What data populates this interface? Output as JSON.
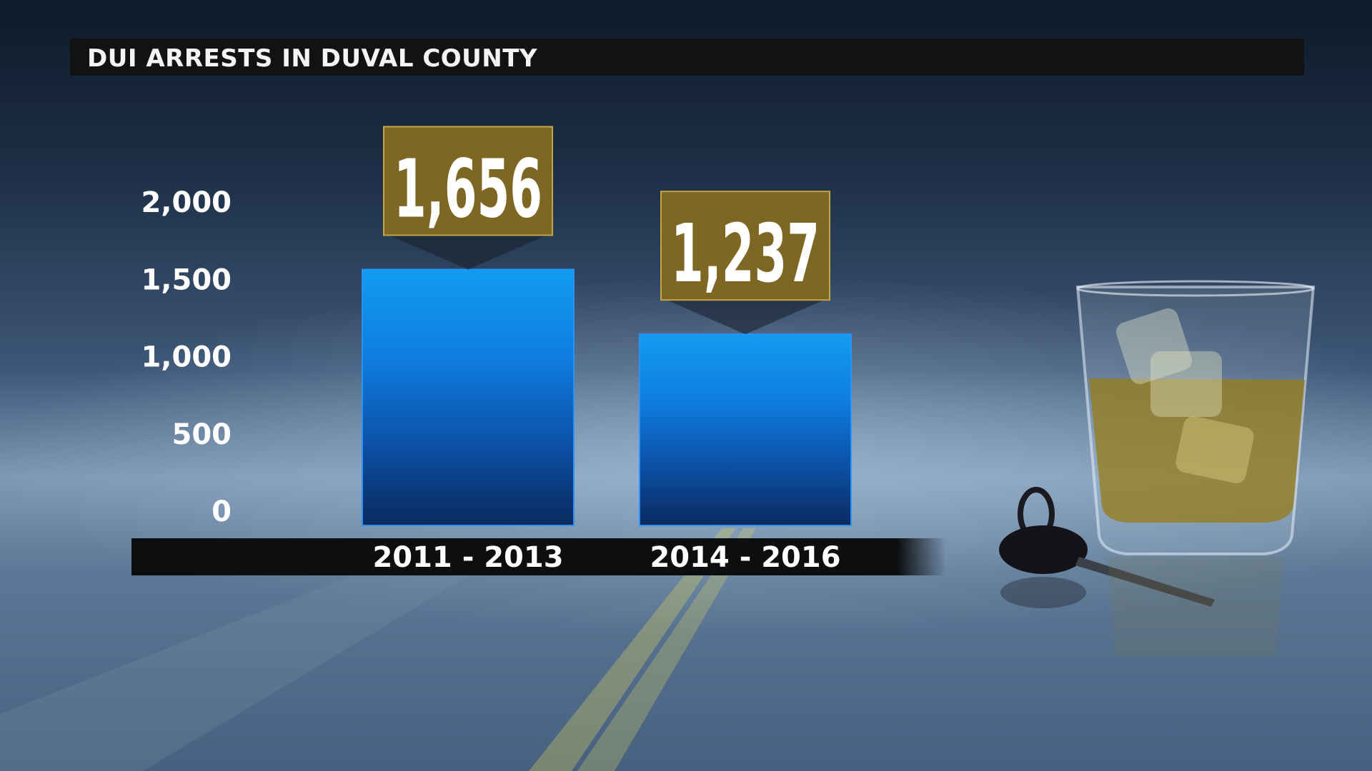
{
  "title": "DUI ARRESTS IN DUVAL COUNTY",
  "chart_data": {
    "type": "bar",
    "title": "DUI ARRESTS IN DUVAL COUNTY",
    "categories": [
      "2011 - 2013",
      "2014 - 2016"
    ],
    "values": [
      1656,
      1237
    ],
    "value_labels": [
      "1,656",
      "1,237"
    ],
    "ylim": [
      0,
      2000
    ],
    "yticks": [
      0,
      500,
      1000,
      1500,
      2000
    ],
    "ytick_labels": [
      "0",
      "500",
      "1,000",
      "1,500",
      "2,000"
    ],
    "xlabel": "",
    "ylabel": "",
    "grid": true,
    "legend": "none",
    "colors": {
      "bar_top": "#119cf0",
      "bar_mid": "#0f75d8",
      "bar_bottom": "#0b2c63",
      "label_box": "#7e6722",
      "title_bar": "#111214"
    }
  },
  "decorations": {
    "background": "night-road-icon",
    "glass": "whiskey-glass-icon",
    "keys": "car-keys-icon"
  }
}
